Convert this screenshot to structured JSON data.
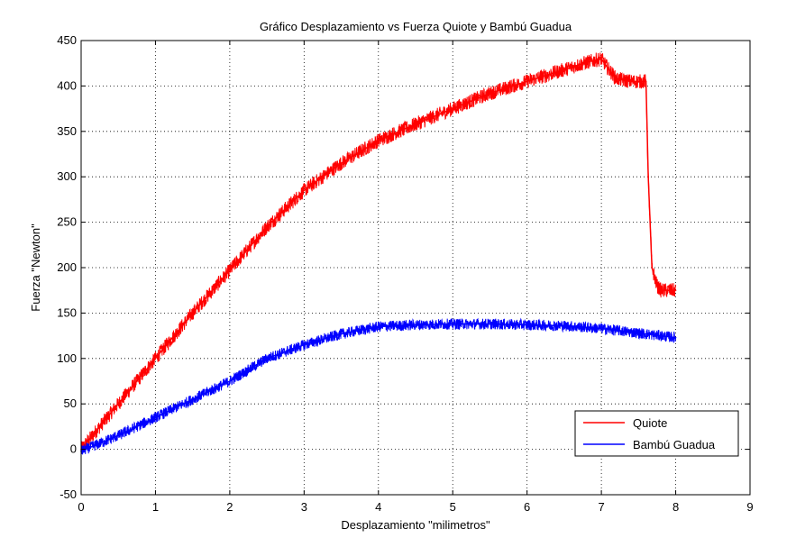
{
  "chart_data": {
    "type": "line",
    "title": "Gráfico Desplazamiento vs Fuerza Quiote y Bambú Guadua",
    "xlabel": "Desplazamiento \"milimetros\"",
    "ylabel": "Fuerza \"Newton\"",
    "xlim": [
      0,
      9
    ],
    "ylim": [
      -50,
      450
    ],
    "xticks": [
      0,
      1,
      2,
      3,
      4,
      5,
      6,
      7,
      8,
      9
    ],
    "yticks": [
      -50,
      0,
      50,
      100,
      150,
      200,
      250,
      300,
      350,
      400,
      450
    ],
    "grid": true,
    "legend_position": "bottom-right",
    "series": [
      {
        "name": "Quiote",
        "color": "#ff0000",
        "noise": 8,
        "x": [
          0,
          0.5,
          1,
          1.5,
          2,
          2.5,
          3,
          3.5,
          4,
          4.5,
          5,
          5.5,
          6,
          6.5,
          6.8,
          7.0,
          7.1,
          7.2,
          7.4,
          7.6,
          7.63,
          7.68,
          7.75,
          7.8,
          8.0
        ],
        "y": [
          0,
          50,
          100,
          150,
          197,
          245,
          285,
          315,
          340,
          358,
          375,
          392,
          405,
          418,
          426,
          430,
          418,
          408,
          405,
          405,
          300,
          200,
          180,
          175,
          175
        ]
      },
      {
        "name": "Bambú Guadua",
        "color": "#0000ff",
        "noise": 6,
        "x": [
          0,
          0.5,
          1,
          1.5,
          2,
          2.5,
          3,
          3.5,
          4,
          4.5,
          5,
          5.5,
          6,
          6.5,
          7,
          7.5,
          8.0
        ],
        "y": [
          -2,
          15,
          35,
          55,
          75,
          100,
          115,
          127,
          135,
          137,
          138,
          138,
          137,
          136,
          133,
          128,
          123
        ]
      }
    ]
  }
}
